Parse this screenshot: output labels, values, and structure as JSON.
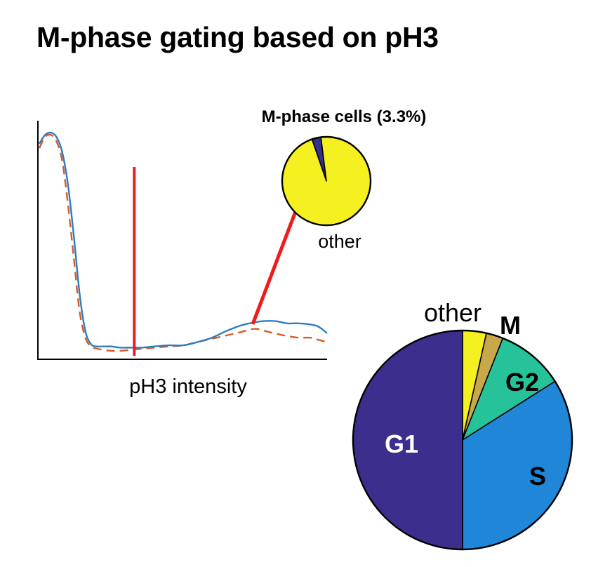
{
  "title": "M-phase gating based on pH3",
  "colors": {
    "solid_curve": "#2e7cc4",
    "dashed_curve": "#d85a2a",
    "gate": "#ee1c1c",
    "arrow": "#ee1c1c",
    "other": "#f5f020",
    "m_phase": "#c9a84c",
    "g2": "#26c29a",
    "s": "#1f86d8",
    "g1": "#3c2e8c",
    "inset_m": "#35308a"
  },
  "chart_data": [
    {
      "type": "line",
      "xlabel": "pH3 intensity",
      "ylabel": "",
      "xlim": [
        0,
        100
      ],
      "ylim": [
        0,
        100
      ],
      "gate_x": 33,
      "series": [
        {
          "style": "solid",
          "x": [
            0,
            2,
            4,
            6,
            8,
            10,
            12,
            14,
            16,
            18,
            20,
            22,
            25,
            28,
            32,
            36,
            40,
            45,
            50,
            55,
            60,
            65,
            70,
            75,
            78,
            82,
            86,
            90,
            94,
            97,
            100
          ],
          "y": [
            94,
            98,
            99,
            97,
            90,
            75,
            52,
            26,
            9,
            3,
            2,
            2,
            2,
            1.5,
            1.5,
            1.5,
            2,
            2.5,
            2.5,
            4,
            6,
            9,
            11.5,
            13,
            13.5,
            13.5,
            12.5,
            12.5,
            12,
            11,
            8
          ]
        },
        {
          "style": "dashed",
          "x": [
            0,
            2,
            4,
            6,
            8,
            10,
            12,
            14,
            16,
            18,
            20,
            22,
            25,
            28,
            32,
            36,
            40,
            45,
            50,
            55,
            60,
            65,
            70,
            75,
            80,
            85,
            90,
            94,
            97,
            100
          ],
          "y": [
            92,
            97,
            98,
            95,
            86,
            66,
            42,
            18,
            6,
            2,
            1,
            0.5,
            0,
            0,
            0.5,
            1,
            1.5,
            2,
            2.5,
            4,
            5.5,
            7,
            8.5,
            10,
            8.5,
            7,
            6,
            6,
            5,
            4
          ]
        }
      ]
    },
    {
      "type": "pie",
      "title": "M-phase cells (3.3%)",
      "labels": [
        "M",
        "other"
      ],
      "values": [
        3.3,
        96.7
      ],
      "visible_labels": {
        "other": "other"
      }
    },
    {
      "type": "pie",
      "labels": [
        "other",
        "M",
        "G2",
        "S",
        "G1"
      ],
      "values": [
        3.5,
        2.5,
        10,
        34,
        50
      ]
    }
  ]
}
